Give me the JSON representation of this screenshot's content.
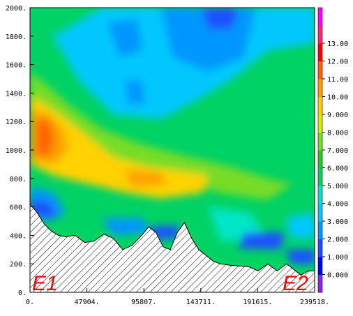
{
  "chart_data": {
    "type": "heatmap",
    "title": "",
    "xlabel": "",
    "ylabel": "",
    "xlim": [
      0,
      239518
    ],
    "ylim": [
      0,
      2000
    ],
    "x_ticks": [
      "0.",
      "47904.",
      "95807.",
      "143711.",
      "191615.",
      "239518."
    ],
    "y_ticks": [
      "0.",
      "200.",
      "400.",
      "600.",
      "800.",
      "1000.",
      "1200.",
      "1400.",
      "1600.",
      "1800.",
      "2000."
    ],
    "colorbar": {
      "levels": [
        -1,
        0,
        1,
        2,
        3,
        4,
        5,
        6,
        7,
        8,
        9,
        10,
        11,
        12,
        13,
        14
      ],
      "labels": [
        "0.000",
        "1.000",
        "2.000",
        "3.000",
        "4.000",
        "5.000",
        "6.000",
        "7.000",
        "8.000",
        "9.000",
        "10.00",
        "11.00",
        "12.00",
        "13.00"
      ],
      "colors": [
        "#8a2be2",
        "#0000ff",
        "#1e50ff",
        "#0096ff",
        "#00c8ff",
        "#00e6c8",
        "#00d264",
        "#28c828",
        "#78dc28",
        "#d2f000",
        "#ffd200",
        "#ffa000",
        "#ff6400",
        "#ff0000",
        "#ff2878",
        "#ff00ff"
      ]
    },
    "terrain_x": [
      0,
      6000,
      12000,
      18000,
      24000,
      30000,
      38000,
      46000,
      54000,
      62000,
      70000,
      78000,
      86000,
      94000,
      100000,
      106000,
      112000,
      118000,
      124000,
      130000,
      136000,
      142000,
      148000,
      154000,
      160000,
      168000,
      176000,
      184000,
      192000,
      200000,
      208000,
      216000,
      222000,
      228000,
      234000,
      239518
    ],
    "terrain_y": [
      620,
      560,
      480,
      430,
      400,
      390,
      400,
      350,
      360,
      410,
      380,
      300,
      330,
      400,
      460,
      420,
      320,
      300,
      420,
      490,
      380,
      300,
      260,
      220,
      200,
      190,
      185,
      180,
      150,
      200,
      150,
      200,
      160,
      120,
      150,
      150
    ],
    "endpoints": [
      "E1",
      "E2"
    ],
    "field_description": "Cross-section of a scalar field 0–14 over distance 0–239518 and height 0–2000; maximum (~10–11) near x≈10000–20000, y≈1000–1200; minimum near terrain; hatched area below terrain"
  }
}
